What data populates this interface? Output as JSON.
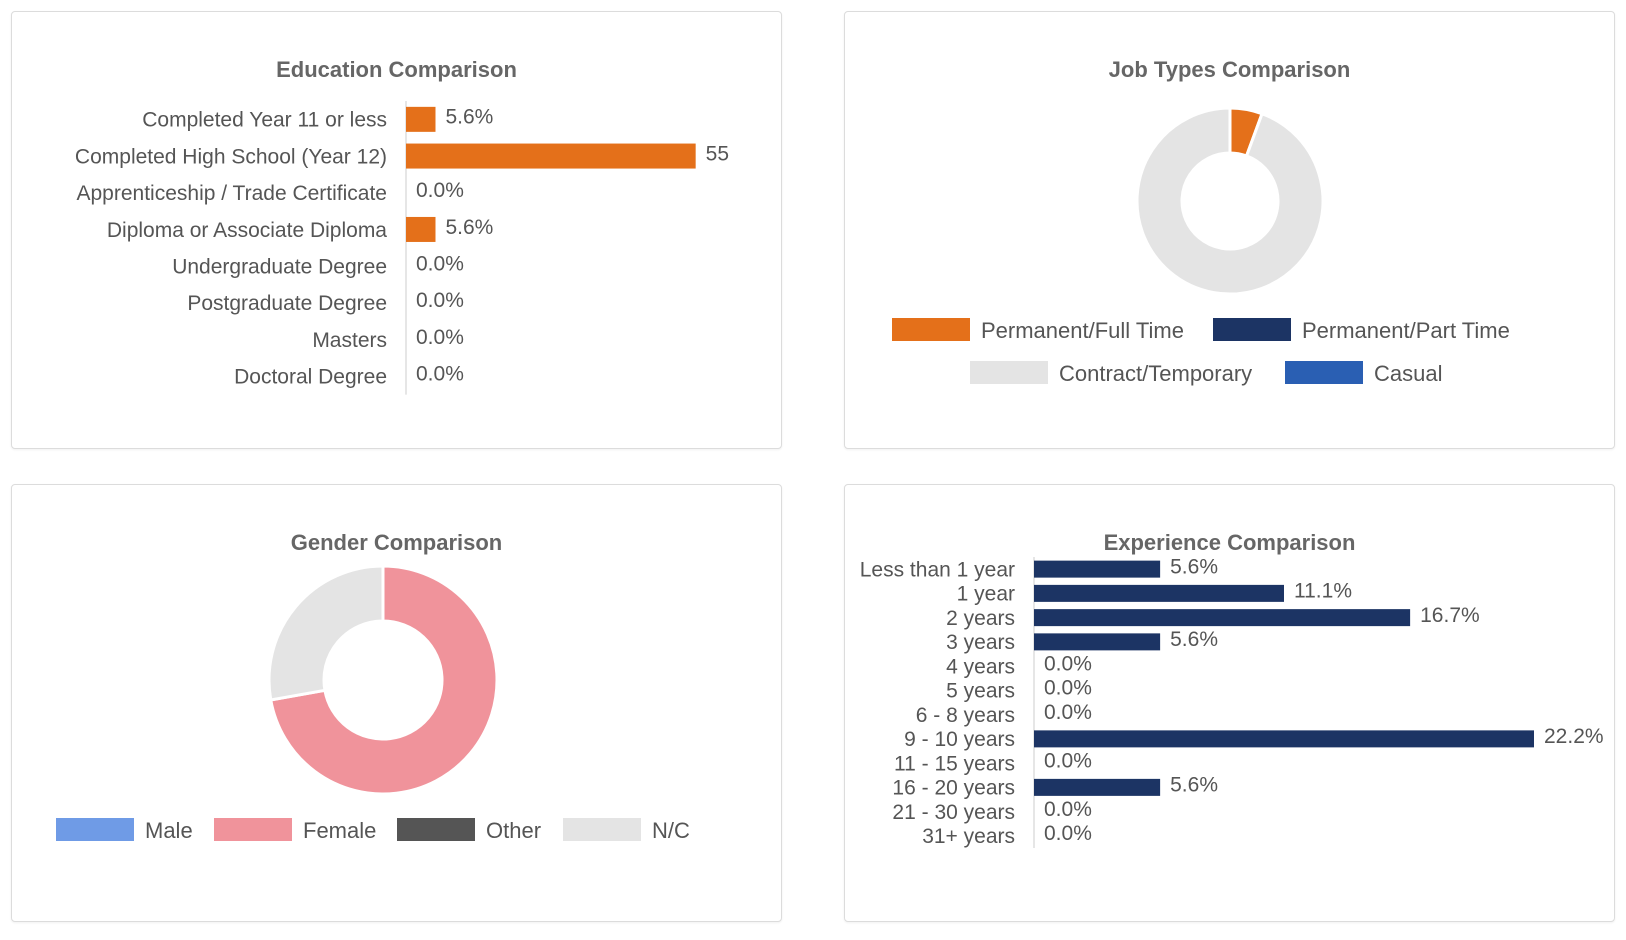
{
  "charts": {
    "education": {
      "type": "bar",
      "title": "Education Comparison",
      "color": "#e4701a",
      "categories": [
        "Completed Year 11 or less",
        "Completed High School (Year 12)",
        "Apprenticeship / Trade Certificate",
        "Diploma or Associate Diploma",
        "Undergraduate Degree",
        "Postgraduate Degree",
        "Masters",
        "Doctoral Degree"
      ],
      "values": [
        5.6,
        55,
        0,
        5.6,
        0,
        0,
        0,
        0
      ],
      "labels": [
        "5.6%",
        "55",
        "0.0%",
        "5.6%",
        "0.0%",
        "0.0%",
        "0.0%",
        "0.0%"
      ],
      "xlim": [
        0,
        60
      ]
    },
    "job_types": {
      "type": "pie",
      "title": "Job Types Comparison",
      "categories": [
        "Permanent/Full Time",
        "Permanent/Part Time",
        "Contract/Temporary",
        "Casual"
      ],
      "values": [
        5.6,
        0,
        94.4,
        0
      ],
      "colors": [
        "#e4701a",
        "#1c3464",
        "#e4e4e4",
        "#2a5fb3"
      ],
      "legend": "bottom"
    },
    "gender": {
      "type": "pie",
      "title": "Gender Comparison",
      "categories": [
        "Male",
        "Female",
        "Other",
        "N/C"
      ],
      "values": [
        0,
        72.2,
        0,
        27.8
      ],
      "colors": [
        "#6f9be6",
        "#f0939b",
        "#555555",
        "#e4e4e4"
      ],
      "legend": "bottom"
    },
    "experience": {
      "type": "bar",
      "title": "Experience Comparison",
      "color": "#1c3464",
      "categories": [
        "Less than 1 year",
        "1 year",
        "2 years",
        "3 years",
        "4 years",
        "5 years",
        "6 - 8 years",
        "9 - 10 years",
        "11 - 15 years",
        "16 - 20 years",
        "21 - 30 years",
        "31+ years"
      ],
      "values": [
        5.6,
        11.1,
        16.7,
        5.6,
        0,
        0,
        0,
        22.2,
        0,
        5.6,
        0,
        0
      ],
      "labels": [
        "5.6%",
        "11.1%",
        "16.7%",
        "5.6%",
        "0.0%",
        "0.0%",
        "0.0%",
        "22.2%",
        "0.0%",
        "5.6%",
        "0.0%",
        "0.0%"
      ],
      "xlim": [
        0,
        22.2
      ]
    }
  }
}
